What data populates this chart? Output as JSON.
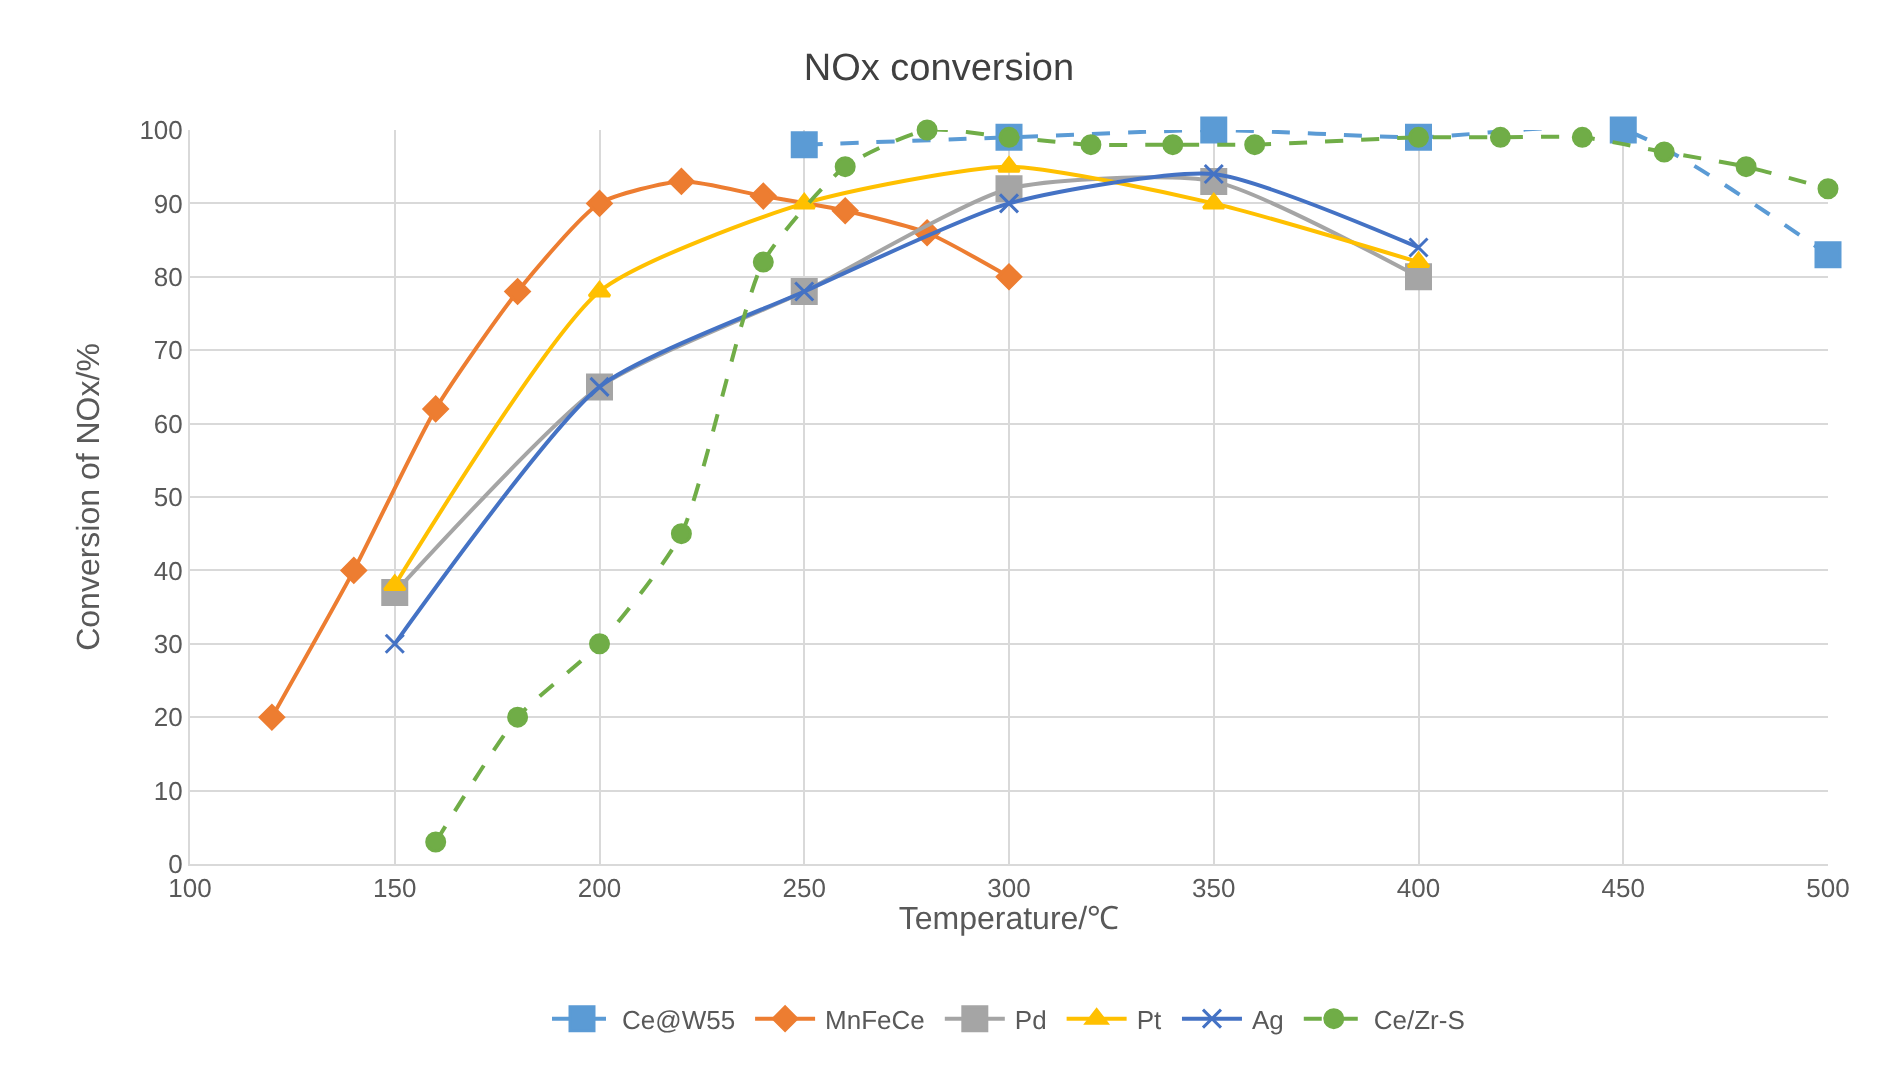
{
  "chart_data": {
    "type": "line",
    "title": "NOx conversion",
    "xlabel": "Temperature/℃",
    "ylabel": "Conversion of NOx/%",
    "xlim": [
      100,
      500
    ],
    "xticks": [
      100,
      150,
      200,
      250,
      300,
      350,
      400,
      450,
      500
    ],
    "ylim": [
      0,
      100
    ],
    "yticks": [
      0,
      10,
      20,
      30,
      40,
      50,
      60,
      70,
      80,
      90,
      100
    ],
    "grid": true,
    "legend": "bottom",
    "series": [
      {
        "name": "Ce@W55",
        "color": "#5b9bd5",
        "marker": "square",
        "line_style": "dashed",
        "x": [
          250,
          300,
          350,
          400,
          450,
          500
        ],
        "values": [
          98,
          99,
          100,
          99,
          100,
          83
        ]
      },
      {
        "name": "MnFeCe",
        "color": "#ed7d31",
        "marker": "diamond",
        "line_style": "solid",
        "x": [
          120,
          140,
          160,
          180,
          200,
          220,
          240,
          260,
          280,
          300
        ],
        "values": [
          20,
          40,
          62,
          78,
          90,
          93,
          91,
          89,
          86,
          80
        ]
      },
      {
        "name": "Pd",
        "color": "#a5a5a5",
        "marker": "square",
        "line_style": "solid",
        "x": [
          150,
          200,
          250,
          300,
          350,
          400
        ],
        "values": [
          37,
          65,
          78,
          92,
          93,
          80
        ]
      },
      {
        "name": "Pt",
        "color": "#ffc000",
        "marker": "triangle",
        "line_style": "solid",
        "x": [
          150,
          200,
          250,
          300,
          350,
          400
        ],
        "values": [
          38,
          78,
          90,
          95,
          90,
          82
        ]
      },
      {
        "name": "Ag",
        "color": "#4472c4",
        "marker": "cross",
        "line_style": "solid",
        "x": [
          150,
          200,
          250,
          300,
          350,
          400
        ],
        "values": [
          30,
          65,
          78,
          90,
          94,
          84
        ]
      },
      {
        "name": "Ce/Zr-S",
        "color": "#70ad47",
        "marker": "circle",
        "line_style": "dashed",
        "x": [
          160,
          180,
          200,
          220,
          240,
          260,
          280,
          300,
          320,
          340,
          360,
          400,
          420,
          440,
          460,
          480,
          500
        ],
        "values": [
          3,
          20,
          30,
          45,
          82,
          95,
          100,
          99,
          98,
          98,
          98,
          99,
          99,
          99,
          97,
          95,
          92
        ]
      }
    ]
  }
}
